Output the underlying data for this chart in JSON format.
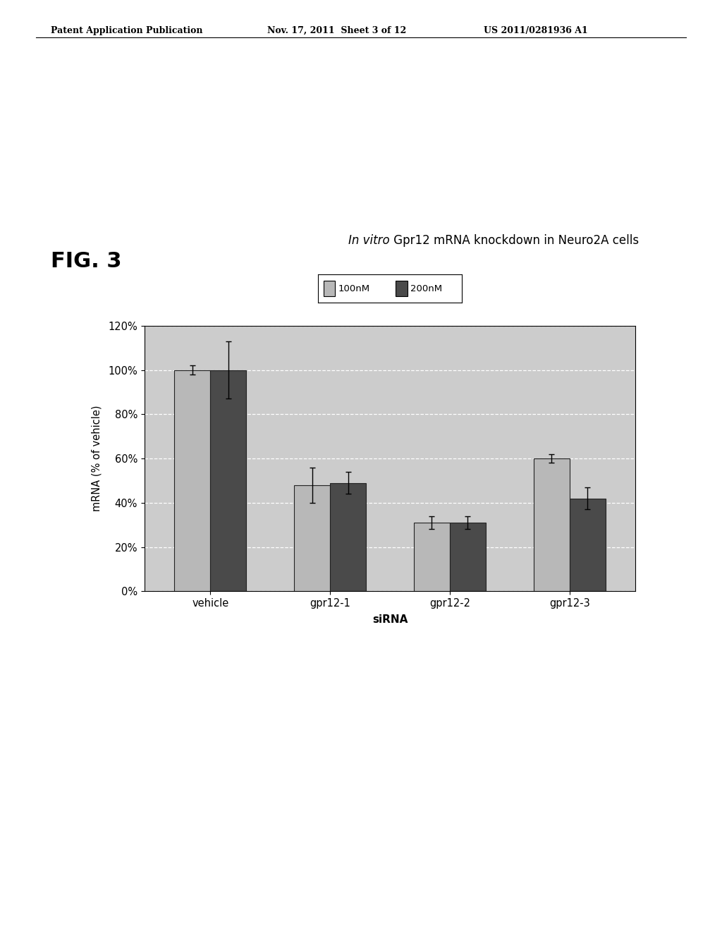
{
  "title_italic": "In vitro",
  "title_regular": " Gpr12 mRNA knockdown in Neuro2A cells",
  "xlabel": "siRNA",
  "ylabel": "mRNA (% of vehicle)",
  "categories": [
    "vehicle",
    "gpr12-1",
    "gpr12-2",
    "gpr12-3"
  ],
  "values_100nM": [
    100,
    48,
    31,
    60
  ],
  "values_200nM": [
    100,
    49,
    31,
    42
  ],
  "errors_100nM": [
    2,
    8,
    3,
    2
  ],
  "errors_200nM": [
    13,
    5,
    3,
    5
  ],
  "color_100nM": "#b8b8b8",
  "color_200nM": "#4a4a4a",
  "bar_edge_color": "#222222",
  "plot_bg_color": "#cccccc",
  "ylim": [
    0,
    120
  ],
  "yticks": [
    0,
    20,
    40,
    60,
    80,
    100,
    120
  ],
  "ytick_labels": [
    "0%",
    "20%",
    "40%",
    "60%",
    "80%",
    "100%",
    "120%"
  ],
  "legend_100nM": "100nM",
  "legend_200nM": "200nM",
  "fig_width": 10.24,
  "fig_height": 13.2,
  "header_left": "Patent Application Publication",
  "header_middle": "Nov. 17, 2011  Sheet 3 of 12",
  "header_right": "US 2011/0281936 A1",
  "fig_label": "FIG. 3"
}
